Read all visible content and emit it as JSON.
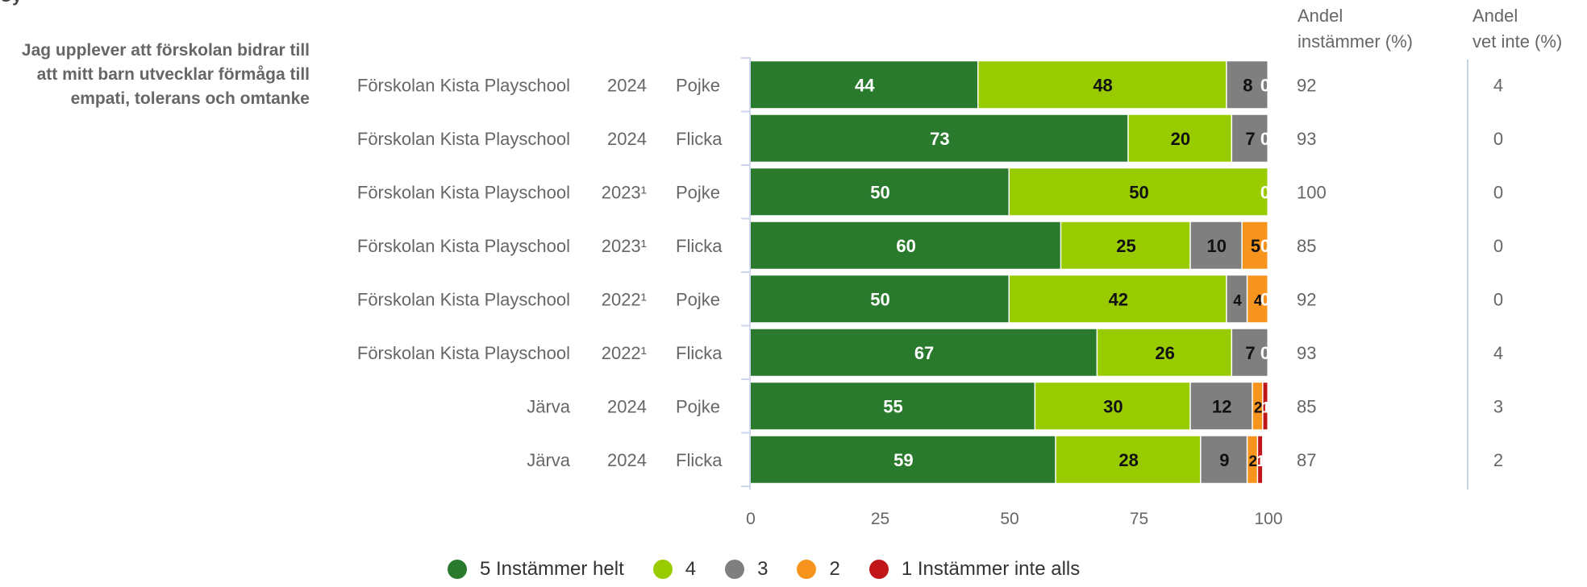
{
  "header": {
    "title_fragment": "Uy",
    "question": "Jag upplever att förskolan bidrar till att mitt barn utvecklar förmåga till empati, tolerans och omtanke",
    "col_agree": [
      "Andel",
      "instämmer (%)"
    ],
    "col_dontknow": [
      "Andel",
      "vet inte (%)"
    ]
  },
  "colors": {
    "c5": "#2a7a2e",
    "c4": "#99cc00",
    "c3": "#7f7f7f",
    "c2": "#f7941d",
    "c1": "#c0161a"
  },
  "chart_data": {
    "type": "bar",
    "orientation": "horizontal",
    "stacked": true,
    "xlim": [
      0,
      100
    ],
    "xticks": [
      "0",
      "25",
      "50",
      "75",
      "100"
    ],
    "rows": [
      {
        "unit": "Förskolan Kista Playschool",
        "year": "2024",
        "gender": "Pojke",
        "values": [
          44,
          48,
          8,
          0,
          0
        ],
        "labels": [
          "44",
          "48",
          "8",
          "0",
          ""
        ],
        "agree": "92",
        "dontknow": "4"
      },
      {
        "unit": "Förskolan Kista Playschool",
        "year": "2024",
        "gender": "Flicka",
        "values": [
          73,
          20,
          7,
          0,
          0
        ],
        "labels": [
          "73",
          "20",
          "7",
          "0",
          ""
        ],
        "agree": "93",
        "dontknow": "0"
      },
      {
        "unit": "Förskolan Kista Playschool",
        "year": "2023¹",
        "gender": "Pojke",
        "values": [
          50,
          50,
          0,
          0,
          0
        ],
        "labels": [
          "50",
          "50",
          "",
          "0",
          ""
        ],
        "agree": "100",
        "dontknow": "0"
      },
      {
        "unit": "Förskolan Kista Playschool",
        "year": "2023¹",
        "gender": "Flicka",
        "values": [
          60,
          25,
          10,
          5,
          0
        ],
        "labels": [
          "60",
          "25",
          "10",
          "5",
          "0"
        ],
        "agree": "85",
        "dontknow": "0"
      },
      {
        "unit": "Förskolan Kista Playschool",
        "year": "2022¹",
        "gender": "Pojke",
        "values": [
          50,
          42,
          4,
          4,
          0
        ],
        "labels": [
          "50",
          "42",
          "4",
          "4",
          "0"
        ],
        "agree": "92",
        "dontknow": "0"
      },
      {
        "unit": "Förskolan Kista Playschool",
        "year": "2022¹",
        "gender": "Flicka",
        "values": [
          67,
          26,
          7,
          0,
          0
        ],
        "labels": [
          "67",
          "26",
          "7",
          "0",
          ""
        ],
        "agree": "93",
        "dontknow": "4"
      },
      {
        "unit": "Järva",
        "year": "2024",
        "gender": "Pojke",
        "values": [
          55,
          30,
          12,
          2,
          1
        ],
        "labels": [
          "55",
          "30",
          "12",
          "2",
          "1"
        ],
        "agree": "85",
        "dontknow": "3"
      },
      {
        "unit": "Järva",
        "year": "2024",
        "gender": "Flicka",
        "values": [
          59,
          28,
          9,
          2,
          1
        ],
        "labels": [
          "59",
          "28",
          "9",
          "2",
          "1"
        ],
        "agree": "87",
        "dontknow": "2"
      }
    ],
    "series": [
      {
        "name": "5 Instämmer helt",
        "color_key": "c5"
      },
      {
        "name": "4",
        "color_key": "c4"
      },
      {
        "name": "3",
        "color_key": "c3"
      },
      {
        "name": "2",
        "color_key": "c2"
      },
      {
        "name": "1 Instämmer inte alls",
        "color_key": "c1"
      }
    ],
    "legend_position": "bottom"
  }
}
